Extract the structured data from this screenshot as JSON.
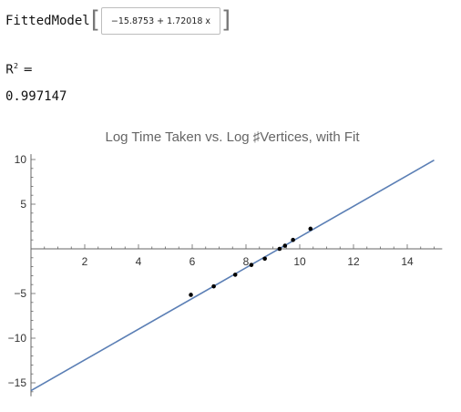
{
  "fitted_model": {
    "label": "FittedModel",
    "expression": "−15.8753 + 1.72018 x"
  },
  "r_squared": {
    "label": "R",
    "superscript": "2",
    "suffix": " =",
    "value": "0.997147"
  },
  "colors": {
    "fit_line": "#5b7fb5",
    "points": "#000000",
    "axis": "#666666",
    "title": "#666666"
  },
  "chart_data": {
    "type": "scatter",
    "title": "Log Time Taken vs. Log ♯Vertices, with Fit",
    "xlabel": "",
    "ylabel": "",
    "xlim": [
      0,
      15
    ],
    "ylim": [
      -16,
      10
    ],
    "x_ticks": [
      2,
      4,
      6,
      8,
      10,
      12,
      14
    ],
    "y_ticks": [
      10,
      5,
      -5,
      -10,
      -15
    ],
    "points": [
      {
        "x": 5.95,
        "y": -5.15
      },
      {
        "x": 6.8,
        "y": -4.2
      },
      {
        "x": 7.6,
        "y": -2.9
      },
      {
        "x": 8.2,
        "y": -1.8
      },
      {
        "x": 8.7,
        "y": -1.1
      },
      {
        "x": 9.25,
        "y": 0.0
      },
      {
        "x": 9.45,
        "y": 0.35
      },
      {
        "x": 9.75,
        "y": 1.0
      },
      {
        "x": 10.4,
        "y": 2.25
      }
    ],
    "fit": {
      "intercept": -15.8753,
      "slope": 1.72018,
      "x_range": [
        0,
        15
      ]
    },
    "grid": false,
    "legend": "none"
  }
}
